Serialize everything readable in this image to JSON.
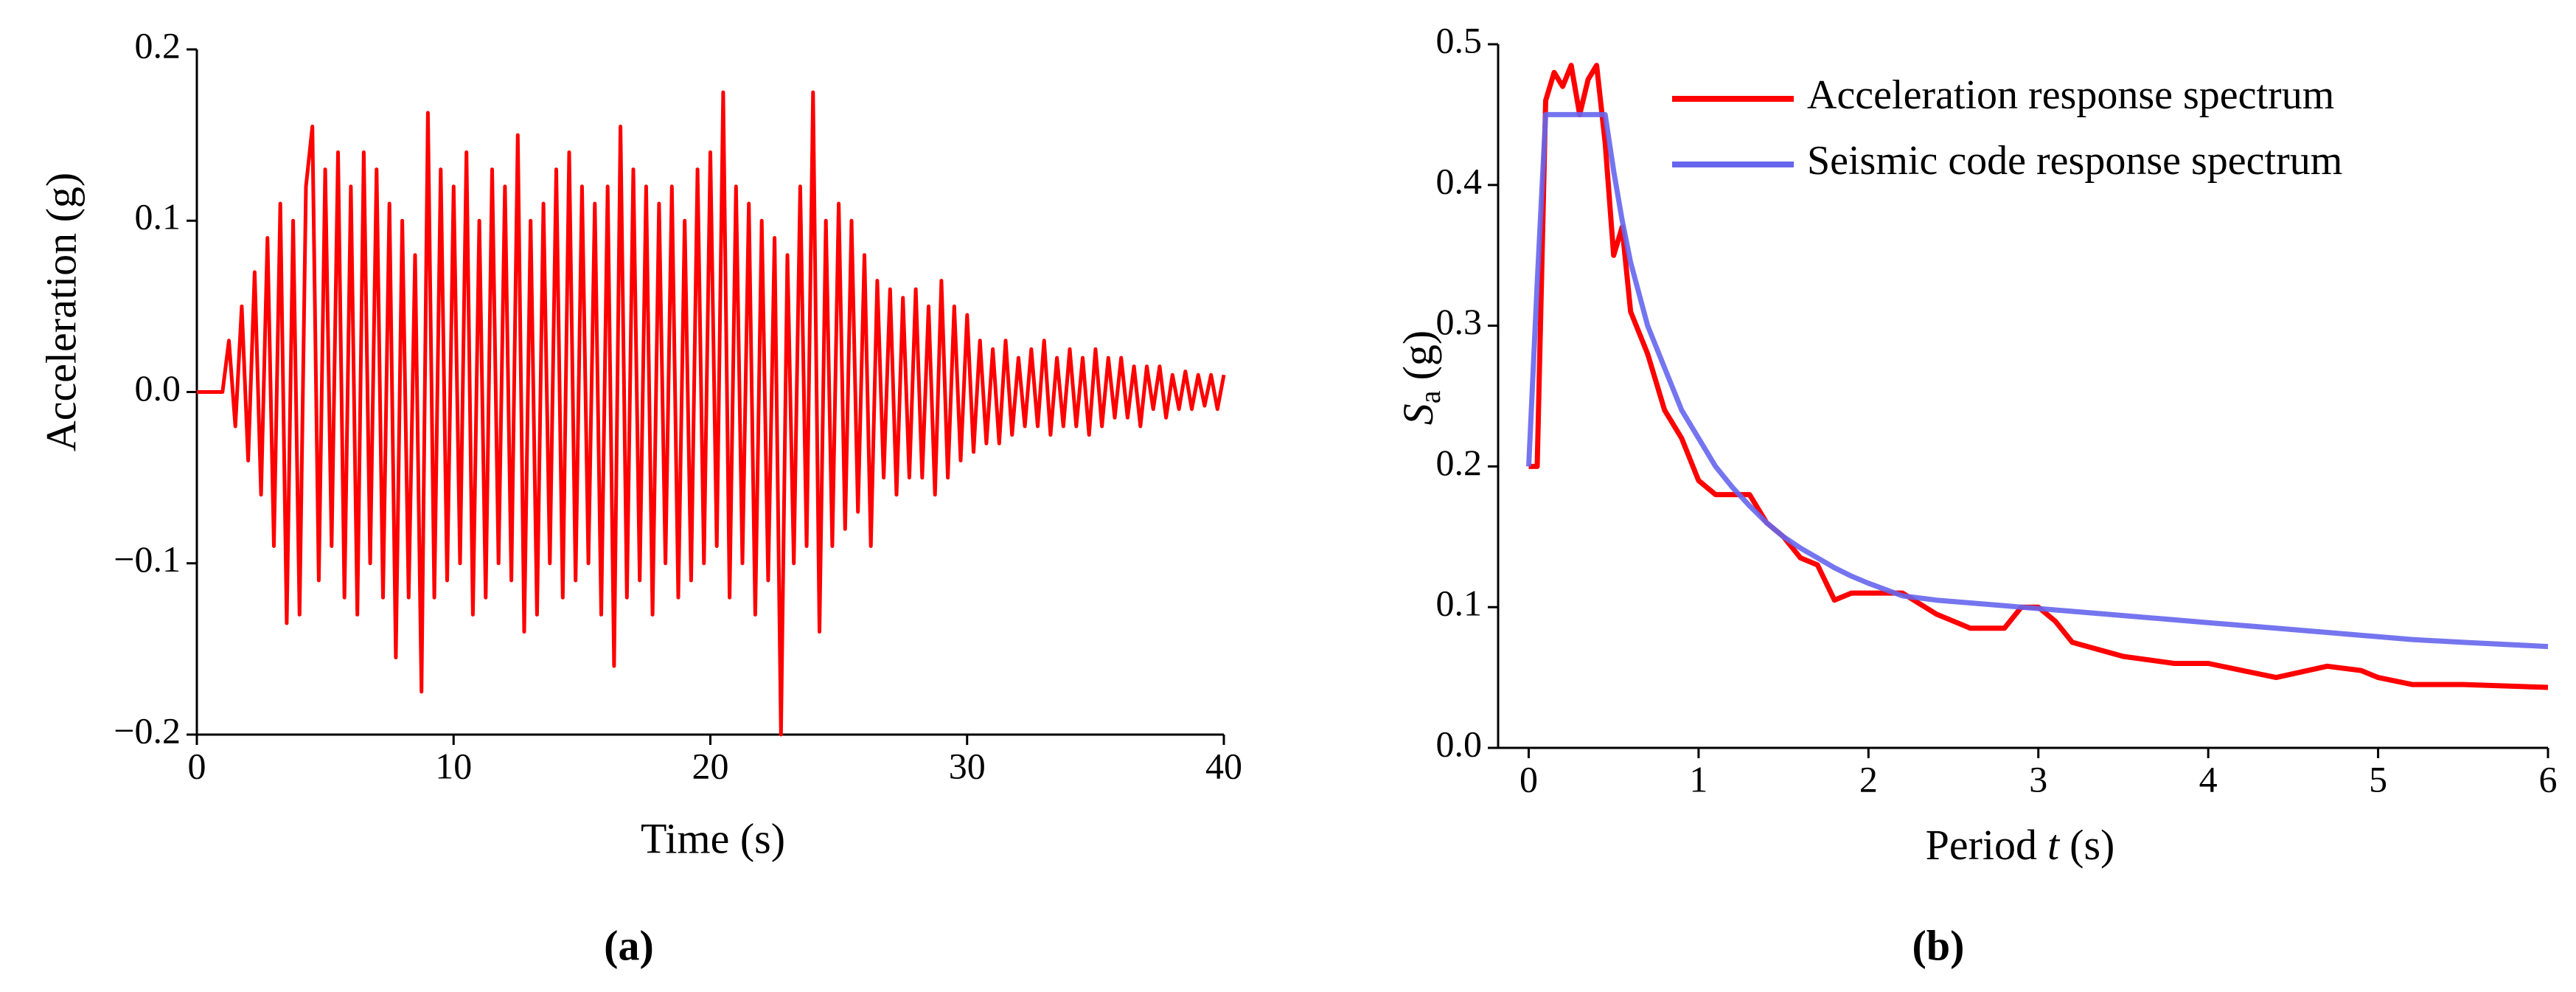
{
  "chart_data": [
    {
      "type": "line",
      "color": "#ff0000",
      "xlabel": "Time (s)",
      "ylabel": "Acceleration (g)",
      "panel": "(a)",
      "xlim": [
        0,
        40
      ],
      "xticks": [
        0,
        10,
        20,
        30,
        40
      ],
      "ylim": [
        -0.2,
        0.2
      ],
      "yticks": [
        {
          "value": -0.2,
          "label": "−0.2"
        },
        {
          "value": -0.1,
          "label": "−0.1"
        },
        {
          "value": 0,
          "label": "0.0"
        },
        0.1,
        0.2
      ],
      "x": [
        0,
        0.25,
        0.5,
        0.75,
        1,
        1.25,
        1.5,
        1.75,
        2,
        2.25,
        2.5,
        2.75,
        3,
        3.25,
        3.5,
        3.75,
        4,
        4.25,
        4.5,
        4.75,
        5,
        5.25,
        5.5,
        5.75,
        6,
        6.25,
        6.5,
        6.75,
        7,
        7.25,
        7.5,
        7.75,
        8,
        8.25,
        8.5,
        8.75,
        9,
        9.25,
        9.5,
        9.75,
        10,
        10.25,
        10.5,
        10.75,
        11,
        11.25,
        11.5,
        11.75,
        12,
        12.25,
        12.5,
        12.75,
        13,
        13.25,
        13.5,
        13.75,
        14,
        14.25,
        14.5,
        14.75,
        15,
        15.25,
        15.5,
        15.75,
        16,
        16.25,
        16.5,
        16.75,
        17,
        17.25,
        17.5,
        17.75,
        18,
        18.25,
        18.5,
        18.75,
        19,
        19.25,
        19.5,
        19.75,
        20,
        20.25,
        20.5,
        20.75,
        21,
        21.25,
        21.5,
        21.75,
        22,
        22.25,
        22.5,
        22.75,
        23,
        23.25,
        23.5,
        23.75,
        24,
        24.25,
        24.5,
        24.75,
        25,
        25.25,
        25.5,
        25.75,
        26,
        26.25,
        26.5,
        26.75,
        27,
        27.25,
        27.5,
        27.75,
        28,
        28.25,
        28.5,
        28.75,
        29,
        29.25,
        29.5,
        29.75,
        30,
        30.25,
        30.5,
        30.75,
        31,
        31.25,
        31.5,
        31.75,
        32,
        32.25,
        32.5,
        32.75,
        33,
        33.25,
        33.5,
        33.75,
        34,
        34.25,
        34.5,
        34.75,
        35,
        35.25,
        35.5,
        35.75,
        36,
        36.25,
        36.5,
        36.75,
        37,
        37.25,
        37.5,
        37.75,
        38,
        38.25,
        38.5,
        38.75,
        39,
        39.25,
        39.5,
        39.75,
        40
      ],
      "values": [
        0,
        0,
        0,
        0,
        0,
        0.03,
        -0.02,
        0.05,
        -0.04,
        0.07,
        -0.06,
        0.09,
        -0.09,
        0.11,
        -0.135,
        0.1,
        -0.13,
        0.12,
        0.155,
        -0.11,
        0.13,
        -0.09,
        0.14,
        -0.12,
        0.12,
        -0.13,
        0.14,
        -0.1,
        0.13,
        -0.12,
        0.11,
        -0.155,
        0.1,
        -0.12,
        0.08,
        -0.175,
        0.163,
        -0.12,
        0.13,
        -0.11,
        0.12,
        -0.1,
        0.14,
        -0.13,
        0.1,
        -0.12,
        0.13,
        -0.1,
        0.12,
        -0.11,
        0.15,
        -0.14,
        0.1,
        -0.13,
        0.11,
        -0.1,
        0.13,
        -0.12,
        0.14,
        -0.11,
        0.12,
        -0.1,
        0.11,
        -0.13,
        0.12,
        -0.16,
        0.155,
        -0.12,
        0.13,
        -0.11,
        0.12,
        -0.13,
        0.11,
        -0.1,
        0.12,
        -0.12,
        0.1,
        -0.11,
        0.13,
        -0.1,
        0.14,
        -0.09,
        0.175,
        -0.12,
        0.12,
        -0.1,
        0.11,
        -0.13,
        0.1,
        -0.11,
        0.09,
        -0.2,
        0.08,
        -0.1,
        0.12,
        -0.09,
        0.175,
        -0.14,
        0.1,
        -0.09,
        0.11,
        -0.08,
        0.1,
        -0.07,
        0.08,
        -0.09,
        0.065,
        -0.05,
        0.06,
        -0.06,
        0.055,
        -0.05,
        0.06,
        -0.05,
        0.05,
        -0.06,
        0.065,
        -0.05,
        0.05,
        -0.04,
        0.045,
        -0.035,
        0.03,
        -0.03,
        0.025,
        -0.03,
        0.03,
        -0.025,
        0.02,
        -0.02,
        0.025,
        -0.02,
        0.03,
        -0.025,
        0.02,
        -0.02,
        0.025,
        -0.02,
        0.02,
        -0.025,
        0.025,
        -0.02,
        0.02,
        -0.015,
        0.02,
        -0.015,
        0.015,
        -0.02,
        0.015,
        -0.01,
        0.015,
        -0.015,
        0.01,
        -0.01,
        0.012,
        -0.01,
        0.01,
        -0.008,
        0.01,
        -0.01,
        0.01
      ]
    },
    {
      "type": "line",
      "panel": "(b)",
      "xlabel": {
        "text": "Period",
        "symbol": "t",
        "unit": "(s)"
      },
      "ylabel": {
        "symbol": "S",
        "subscript": "a",
        "unit": "(g)"
      },
      "xlim": [
        -0.18,
        6
      ],
      "xticks": [
        0,
        1,
        2,
        3,
        4,
        5,
        6
      ],
      "ylim": [
        0,
        0.5
      ],
      "yticks": [
        {
          "value": 0,
          "label": "0.0"
        },
        0.1,
        0.2,
        0.3,
        0.4,
        0.5
      ],
      "legend": "upper right",
      "x": [
        0,
        0.05,
        0.1,
        0.15,
        0.2,
        0.25,
        0.3,
        0.35,
        0.4,
        0.45,
        0.5,
        0.55,
        0.6,
        0.7,
        0.8,
        0.9,
        1,
        1.1,
        1.2,
        1.3,
        1.4,
        1.5,
        1.6,
        1.7,
        1.8,
        1.9,
        2,
        2.2,
        2.4,
        2.6,
        2.8,
        2.9,
        3,
        3.1,
        3.2,
        3.5,
        3.8,
        4,
        4.4,
        4.7,
        4.9,
        5,
        5.2,
        5.5,
        6
      ],
      "series": [
        {
          "name": "Acceleration response spectrum",
          "color": "#ff0000",
          "values": [
            0.2,
            0.2,
            0.46,
            0.48,
            0.47,
            0.485,
            0.45,
            0.475,
            0.485,
            0.43,
            0.35,
            0.37,
            0.31,
            0.28,
            0.24,
            0.22,
            0.19,
            0.18,
            0.18,
            0.18,
            0.16,
            0.15,
            0.135,
            0.13,
            0.105,
            0.11,
            0.11,
            0.11,
            0.095,
            0.085,
            0.085,
            0.1,
            0.1,
            0.09,
            0.075,
            0.065,
            0.06,
            0.06,
            0.05,
            0.058,
            0.055,
            0.05,
            0.045,
            0.045,
            0.043
          ]
        },
        {
          "name": "Seismic code response spectrum",
          "color": "#6666ee",
          "values": [
            0.2,
            0.33,
            0.45,
            0.45,
            0.45,
            0.45,
            0.45,
            0.45,
            0.45,
            0.45,
            0.41,
            0.375,
            0.345,
            0.3,
            0.27,
            0.24,
            0.22,
            0.2,
            0.185,
            0.172,
            0.16,
            0.15,
            0.142,
            0.135,
            0.128,
            0.122,
            0.117,
            0.108,
            0.105,
            0.103,
            0.101,
            0.1,
            0.099,
            0.098,
            0.097,
            0.094,
            0.091,
            0.089,
            0.085,
            0.082,
            0.08,
            0.079,
            0.077,
            0.075,
            0.072
          ]
        }
      ]
    }
  ]
}
